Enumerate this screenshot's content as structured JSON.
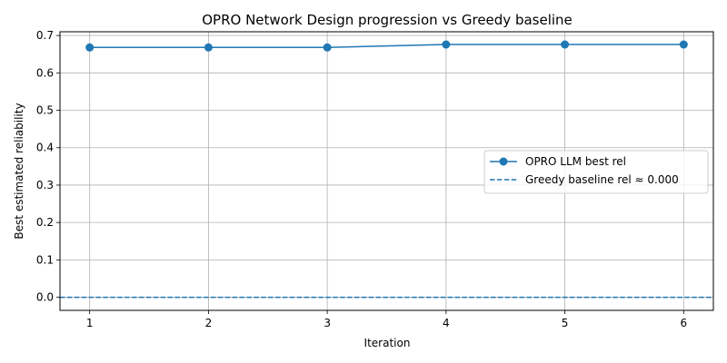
{
  "chart_data": {
    "type": "line",
    "title": "OPRO Network Design progression vs Greedy baseline",
    "xlabel": "Iteration",
    "ylabel": "Best estimated reliability",
    "xlim": [
      0.75,
      6.25
    ],
    "ylim": [
      -0.035,
      0.71
    ],
    "xticks": [
      1,
      2,
      3,
      4,
      5,
      6
    ],
    "yticks": [
      0.0,
      0.1,
      0.2,
      0.3,
      0.4,
      0.5,
      0.6,
      0.7
    ],
    "ytick_labels": [
      "0.0",
      "0.1",
      "0.2",
      "0.3",
      "0.4",
      "0.5",
      "0.6",
      "0.7"
    ],
    "grid": true,
    "legend_position": "center-right",
    "series": [
      {
        "name": "OPRO LLM best rel",
        "style": "solid-line-circle-markers",
        "color": "#1f77b4",
        "x": [
          1,
          2,
          3,
          4,
          5,
          6
        ],
        "values": [
          0.668,
          0.668,
          0.668,
          0.676,
          0.676,
          0.676
        ]
      },
      {
        "name": "Greedy baseline rel ≈ 0.000",
        "style": "dashed-horizontal-line",
        "color": "#1f77b4",
        "value": 0.0
      }
    ]
  }
}
